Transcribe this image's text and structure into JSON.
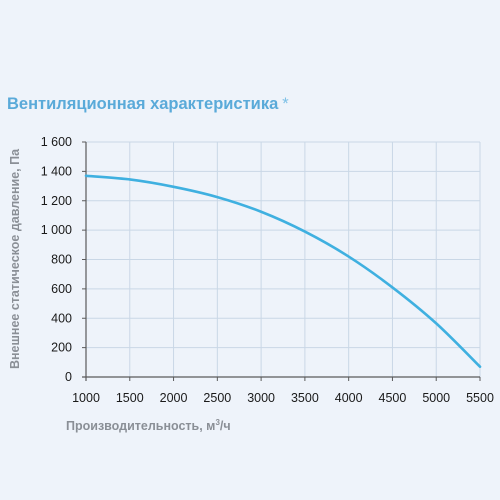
{
  "chart_data": {
    "type": "line",
    "title": "Вентиляционная характеристика",
    "title_mark": "*",
    "xlabel_prefix": "Производительность, м",
    "xlabel_sup": "3",
    "xlabel_suffix": "/ч",
    "ylabel": "Внешнее статическое давление, Па",
    "xlim": [
      1000,
      5500
    ],
    "ylim": [
      0,
      1600
    ],
    "x_ticks": [
      1000,
      1500,
      2000,
      2500,
      3000,
      3500,
      4000,
      4500,
      5000,
      5500
    ],
    "x_tick_labels": [
      "1000",
      "1500",
      "2000",
      "2500",
      "3000",
      "3500",
      "4000",
      "4500",
      "5000",
      "5500"
    ],
    "y_ticks": [
      0,
      200,
      400,
      600,
      800,
      1000,
      1200,
      1400,
      1600
    ],
    "y_tick_labels": [
      "0",
      "200",
      "400",
      "600",
      "800",
      "1 000",
      "1 200",
      "1 400",
      "1 600"
    ],
    "grid": true,
    "series": [
      {
        "color": "#3fb0e0",
        "x": [
          1000,
          1500,
          2000,
          2500,
          3000,
          3500,
          4000,
          4500,
          5000,
          5500
        ],
        "y": [
          1370,
          1345,
          1295,
          1225,
          1125,
          990,
          820,
          610,
          365,
          70
        ]
      }
    ]
  }
}
